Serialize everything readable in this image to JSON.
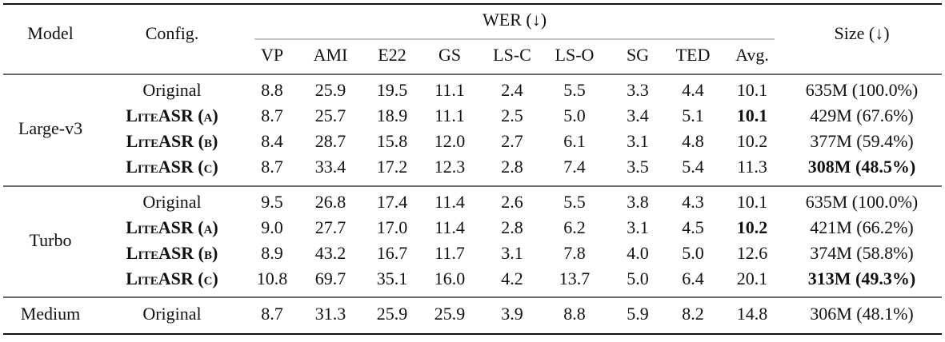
{
  "header": {
    "model": "Model",
    "config": "Config.",
    "wer": "WER (↓)",
    "size": "Size (↓)",
    "metrics": [
      "VP",
      "AMI",
      "E22",
      "GS",
      "LS-C",
      "LS-O",
      "SG",
      "TED",
      "Avg."
    ]
  },
  "groups": [
    {
      "model": "Large-v3",
      "rows": [
        {
          "config": "Original",
          "values": [
            "8.8",
            "25.9",
            "19.5",
            "11.1",
            "2.4",
            "5.5",
            "3.3",
            "4.4",
            "10.1"
          ],
          "size": "635M (100.0%)"
        },
        {
          "config": "LiteASR (a)",
          "bold_config": true,
          "values": [
            "8.7",
            "25.7",
            "18.9",
            "11.1",
            "2.5",
            "5.0",
            "3.4",
            "5.1",
            "10.1"
          ],
          "bold_avg": true,
          "size": "429M (67.6%)"
        },
        {
          "config": "LiteASR (b)",
          "bold_config": true,
          "values": [
            "8.4",
            "28.7",
            "15.8",
            "12.0",
            "2.7",
            "6.1",
            "3.1",
            "4.8",
            "10.2"
          ],
          "size": "377M (59.4%)"
        },
        {
          "config": "LiteASR (c)",
          "bold_config": true,
          "values": [
            "8.7",
            "33.4",
            "17.2",
            "12.3",
            "2.8",
            "7.4",
            "3.5",
            "5.4",
            "11.3"
          ],
          "size": "308M (48.5%)",
          "bold_size": true
        }
      ]
    },
    {
      "model": "Turbo",
      "rows": [
        {
          "config": "Original",
          "values": [
            "9.5",
            "26.8",
            "17.4",
            "11.4",
            "2.6",
            "5.5",
            "3.8",
            "4.3",
            "10.1"
          ],
          "size": "635M (100.0%)"
        },
        {
          "config": "LiteASR (a)",
          "bold_config": true,
          "values": [
            "9.0",
            "27.7",
            "17.0",
            "11.4",
            "2.8",
            "6.2",
            "3.1",
            "4.5",
            "10.2"
          ],
          "bold_avg": true,
          "size": "421M (66.2%)"
        },
        {
          "config": "LiteASR (b)",
          "bold_config": true,
          "values": [
            "8.9",
            "43.2",
            "16.7",
            "11.7",
            "3.1",
            "7.8",
            "4.0",
            "5.0",
            "12.6"
          ],
          "size": "374M (58.8%)"
        },
        {
          "config": "LiteASR (c)",
          "bold_config": true,
          "values": [
            "10.8",
            "69.7",
            "35.1",
            "16.0",
            "4.2",
            "13.7",
            "5.0",
            "6.4",
            "20.1"
          ],
          "size": "313M (49.3%)",
          "bold_size": true
        }
      ]
    },
    {
      "model": "Medium",
      "rows": [
        {
          "config": "Original",
          "values": [
            "8.7",
            "31.3",
            "25.9",
            "25.9",
            "3.9",
            "8.8",
            "5.9",
            "8.2",
            "14.8"
          ],
          "size": "306M (48.1%)"
        }
      ]
    }
  ]
}
